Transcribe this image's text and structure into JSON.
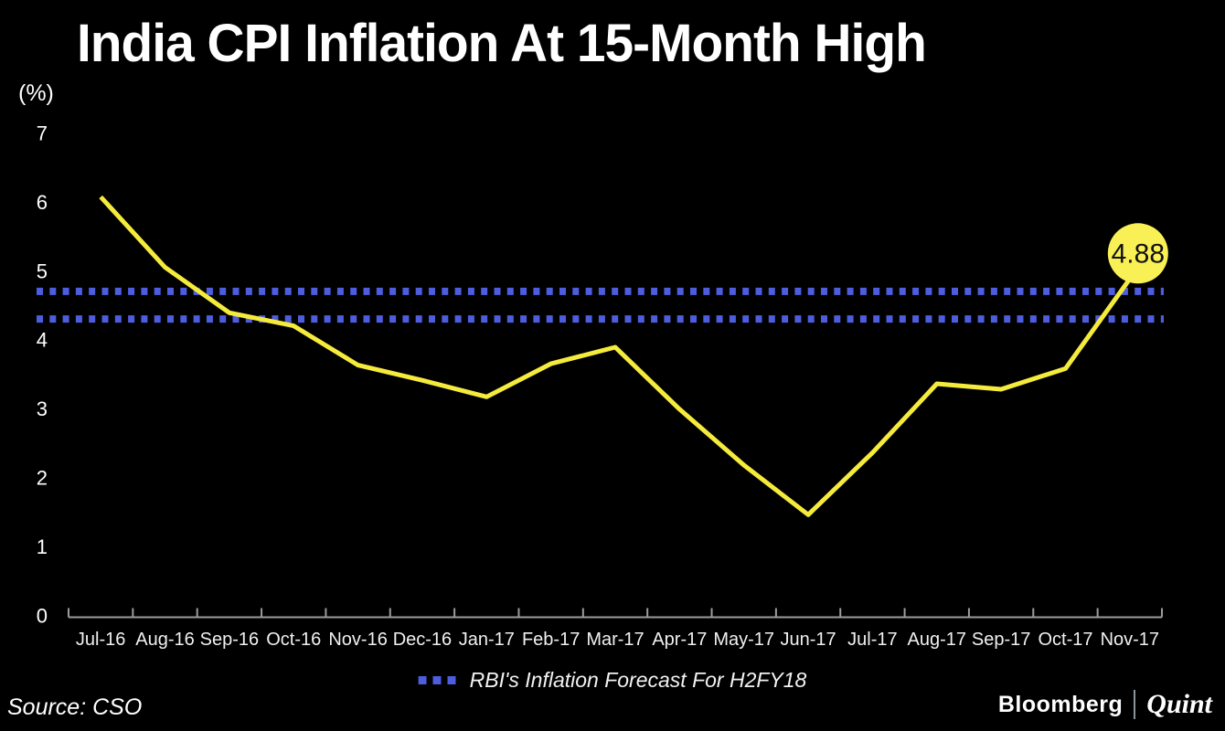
{
  "header": {
    "title": "India CPI Inflation At 15-Month High"
  },
  "chart_data": {
    "type": "line",
    "title": "India CPI Inflation At 15-Month High",
    "y_unit": "(%)",
    "xlabel": "",
    "ylabel": "(%)",
    "ylim": [
      0,
      7
    ],
    "yticks": [
      0,
      1,
      2,
      3,
      4,
      5,
      6,
      7
    ],
    "grid": false,
    "legend_position": "bottom",
    "categories": [
      "Jul-16",
      "Aug-16",
      "Sep-16",
      "Oct-16",
      "Nov-16",
      "Dec-16",
      "Jan-17",
      "Feb-17",
      "Mar-17",
      "Apr-17",
      "May-17",
      "Jun-17",
      "Jul-17",
      "Aug-17",
      "Sep-17",
      "Oct-17",
      "Nov-17"
    ],
    "series": [
      {
        "name": "India CPI Inflation",
        "values": [
          6.07,
          5.05,
          4.39,
          4.2,
          3.63,
          3.41,
          3.17,
          3.65,
          3.89,
          2.99,
          2.18,
          1.46,
          2.36,
          3.36,
          3.28,
          3.58,
          4.88
        ]
      }
    ],
    "end_label": "4.88",
    "forecast_band": {
      "label": "RBI's Inflation Forecast For H2FY18",
      "upper": 4.7,
      "lower": 4.3
    },
    "colors": {
      "background": "#000000",
      "line": "#F5EB3C",
      "marker_fill": "#F9F055",
      "marker_text": "#111111",
      "forecast": "#4E5DDE",
      "axis": "#9c9c9c",
      "tick_text": "#f0f0f0",
      "text": "#ffffff"
    }
  },
  "legend": {
    "forecast_label": "RBI's Inflation Forecast For H2FY18"
  },
  "footer": {
    "source": "Source: CSO",
    "brand_left": "Bloomberg",
    "brand_right": "Quint"
  }
}
